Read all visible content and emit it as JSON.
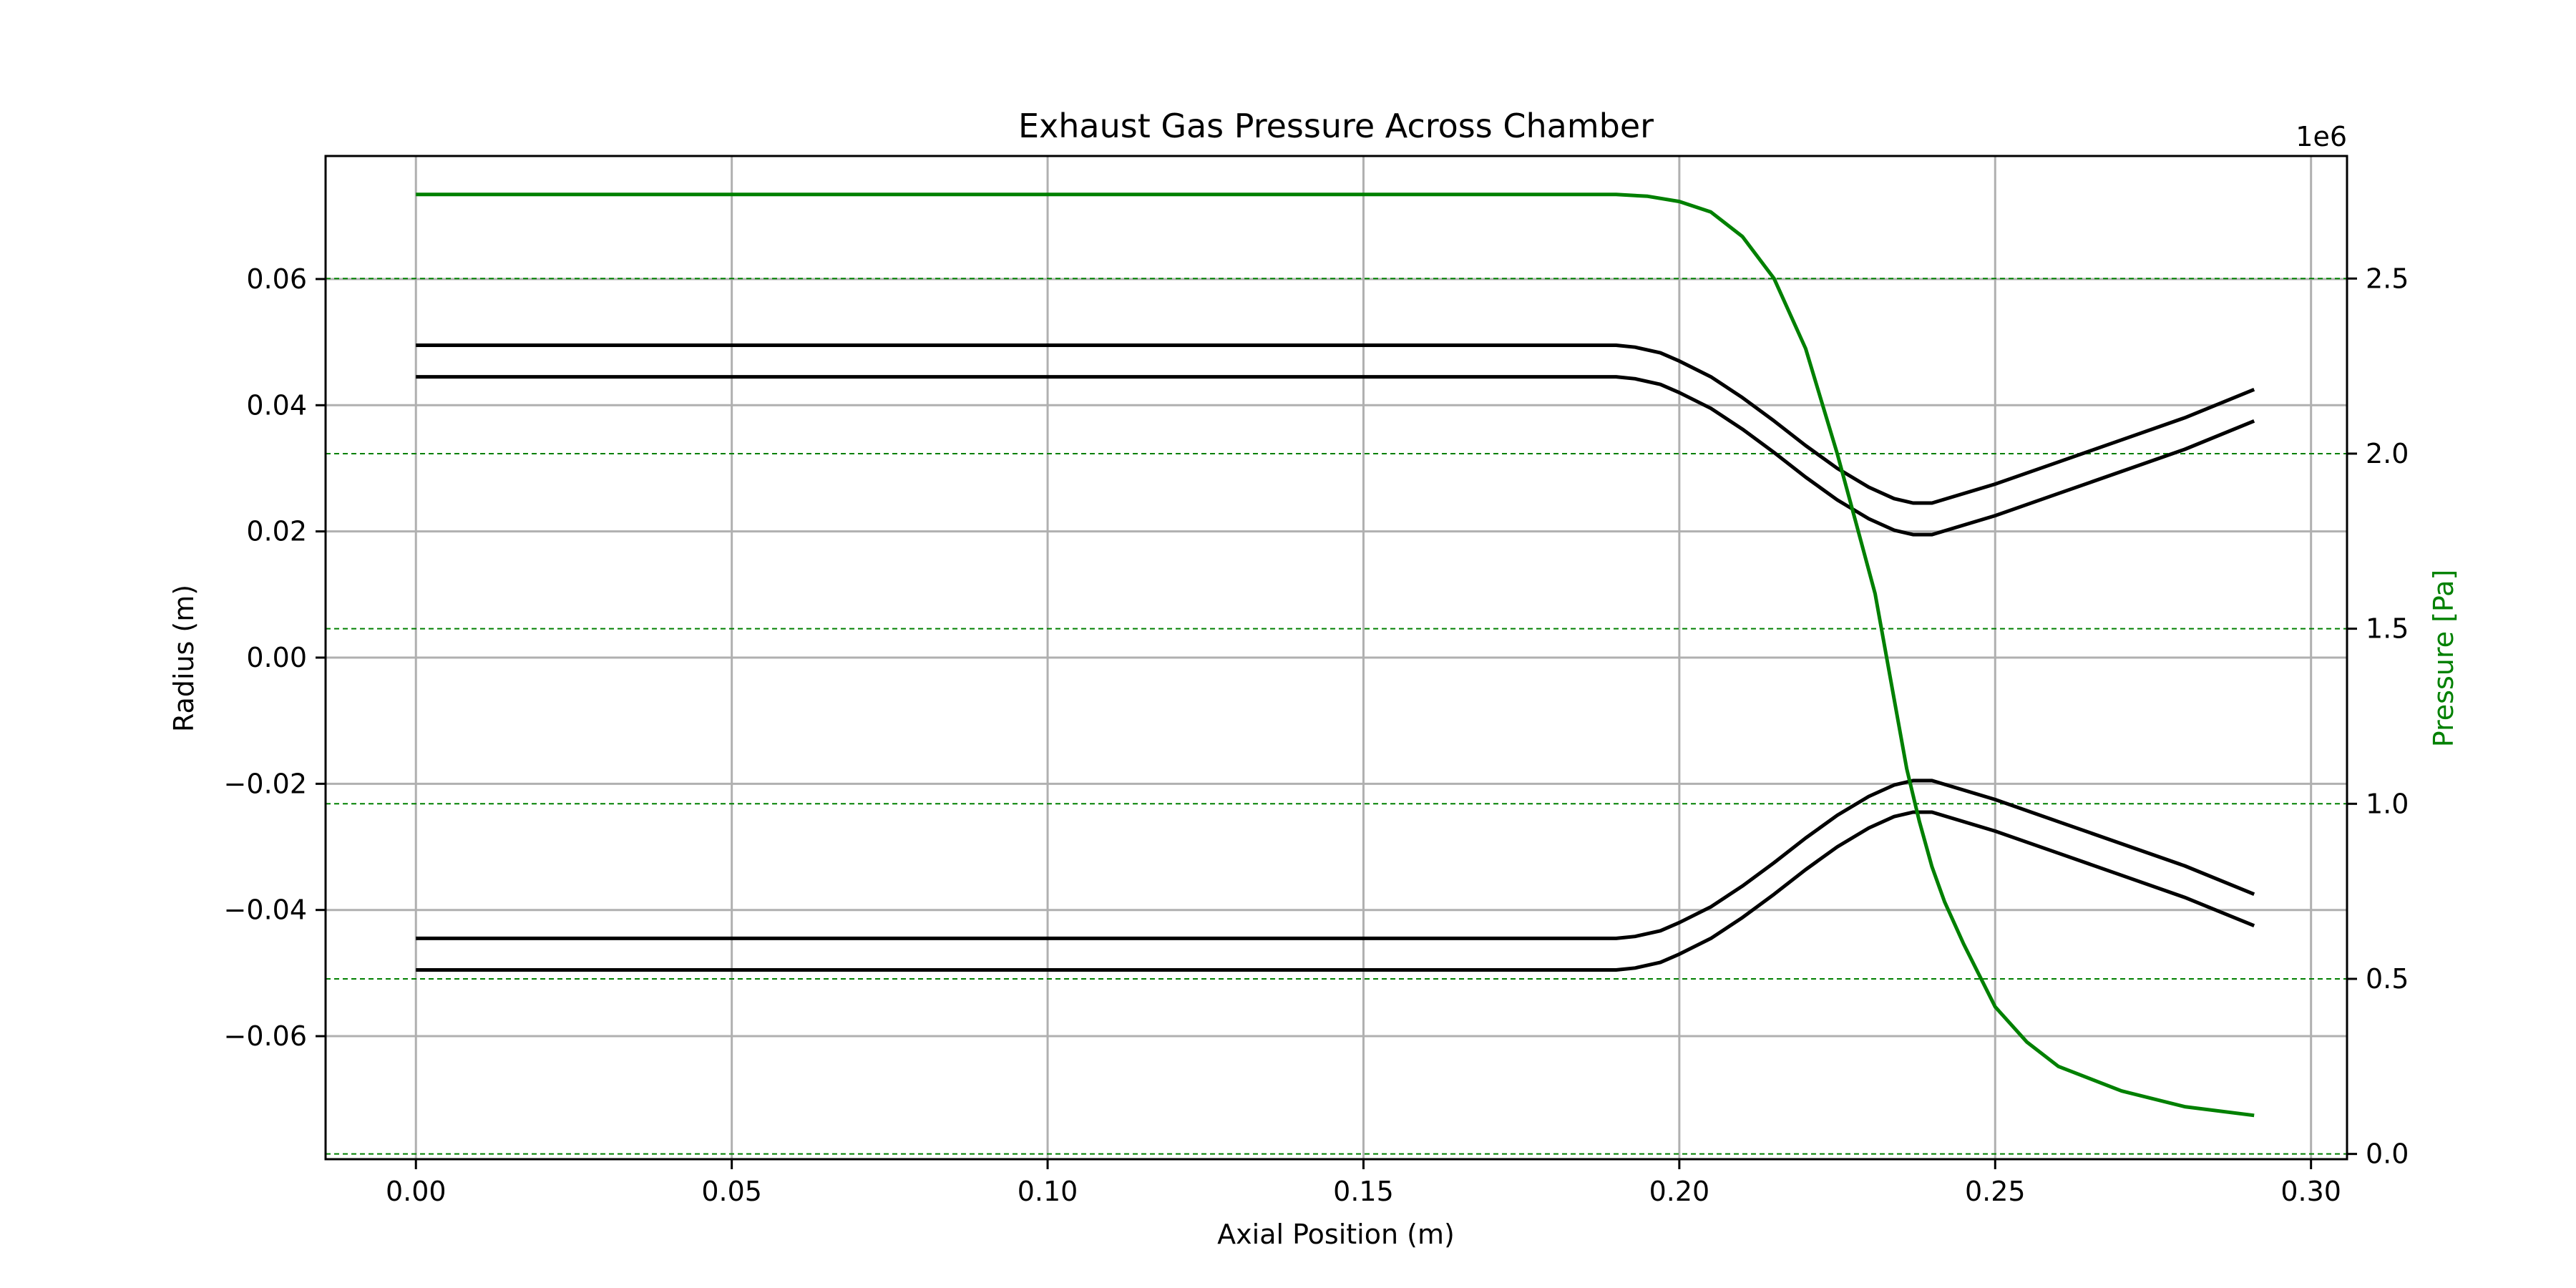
{
  "chart_data": {
    "type": "line",
    "title": "Exhaust Gas Pressure Across Chamber",
    "xlabel": "Axial Position (m)",
    "ylabel": "Radius (m)",
    "y2label": "Pressure [Pa]",
    "y2_offset_text": "1e6",
    "xlim": [
      -0.0143,
      0.3057
    ],
    "ylim": [
      -0.0795,
      0.0795
    ],
    "y2lim": [
      -0.015,
      2.85
    ],
    "y2_scale": 1000000,
    "grid": true,
    "x_ticks": [
      {
        "value": 0.0,
        "label": "0.00"
      },
      {
        "value": 0.05,
        "label": "0.05"
      },
      {
        "value": 0.1,
        "label": "0.10"
      },
      {
        "value": 0.15,
        "label": "0.15"
      },
      {
        "value": 0.2,
        "label": "0.20"
      },
      {
        "value": 0.25,
        "label": "0.25"
      },
      {
        "value": 0.3,
        "label": "0.30"
      }
    ],
    "y_ticks": [
      {
        "value": 0.06,
        "label": "0.06"
      },
      {
        "value": 0.04,
        "label": "0.04"
      },
      {
        "value": 0.02,
        "label": "0.02"
      },
      {
        "value": 0.0,
        "label": "0.00"
      },
      {
        "value": -0.02,
        "label": "−0.02"
      },
      {
        "value": -0.04,
        "label": "−0.04"
      },
      {
        "value": -0.06,
        "label": "−0.06"
      }
    ],
    "y2_ticks": [
      {
        "value": 2.5,
        "label": "2.5"
      },
      {
        "value": 2.0,
        "label": "2.0"
      },
      {
        "value": 1.5,
        "label": "1.5"
      },
      {
        "value": 1.0,
        "label": "1.0"
      },
      {
        "value": 0.5,
        "label": "0.5"
      },
      {
        "value": 0.0,
        "label": "0.0"
      }
    ],
    "colors": {
      "contour": "#000000",
      "pressure": "#008000",
      "grid": "#b0b0b0"
    },
    "contour_series": [
      {
        "x": [
          0.0,
          0.19,
          0.193,
          0.197,
          0.2,
          0.205,
          0.21,
          0.215,
          0.22,
          0.225,
          0.23,
          0.234,
          0.237,
          0.24,
          0.25,
          0.26,
          0.27,
          0.28,
          0.291
        ],
        "y": [
          0.0495,
          0.0495,
          0.0492,
          0.0483,
          0.047,
          0.0445,
          0.0412,
          0.0375,
          0.0336,
          0.03,
          0.027,
          0.0252,
          0.0245,
          0.0245,
          0.0275,
          0.031,
          0.0345,
          0.038,
          0.0425
        ]
      },
      {
        "x": [
          0.0,
          0.19,
          0.193,
          0.197,
          0.2,
          0.205,
          0.21,
          0.215,
          0.22,
          0.225,
          0.23,
          0.234,
          0.237,
          0.24,
          0.25,
          0.26,
          0.27,
          0.28,
          0.291
        ],
        "y": [
          0.0445,
          0.0445,
          0.0442,
          0.0433,
          0.042,
          0.0395,
          0.0362,
          0.0325,
          0.0286,
          0.025,
          0.022,
          0.0202,
          0.0195,
          0.0195,
          0.0225,
          0.026,
          0.0295,
          0.033,
          0.0375
        ]
      },
      {
        "x": [
          0.0,
          0.19,
          0.193,
          0.197,
          0.2,
          0.205,
          0.21,
          0.215,
          0.22,
          0.225,
          0.23,
          0.234,
          0.237,
          0.24,
          0.25,
          0.26,
          0.27,
          0.28,
          0.291
        ],
        "y": [
          -0.0445,
          -0.0445,
          -0.0442,
          -0.0433,
          -0.042,
          -0.0395,
          -0.0362,
          -0.0325,
          -0.0286,
          -0.025,
          -0.022,
          -0.0202,
          -0.0195,
          -0.0195,
          -0.0225,
          -0.026,
          -0.0295,
          -0.033,
          -0.0375
        ]
      },
      {
        "x": [
          0.0,
          0.19,
          0.193,
          0.197,
          0.2,
          0.205,
          0.21,
          0.215,
          0.22,
          0.225,
          0.23,
          0.234,
          0.237,
          0.24,
          0.25,
          0.26,
          0.27,
          0.28,
          0.291
        ],
        "y": [
          -0.0495,
          -0.0495,
          -0.0492,
          -0.0483,
          -0.047,
          -0.0445,
          -0.0412,
          -0.0375,
          -0.0336,
          -0.03,
          -0.027,
          -0.0252,
          -0.0245,
          -0.0245,
          -0.0275,
          -0.031,
          -0.0345,
          -0.038,
          -0.0425
        ]
      }
    ],
    "pressure_series": {
      "axis": "y2",
      "x": [
        0.0,
        0.19,
        0.195,
        0.2,
        0.205,
        0.21,
        0.215,
        0.22,
        0.225,
        0.228,
        0.231,
        0.234,
        0.236,
        0.238,
        0.24,
        0.242,
        0.245,
        0.25,
        0.255,
        0.26,
        0.27,
        0.28,
        0.291
      ],
      "y": [
        2.74,
        2.74,
        2.735,
        2.72,
        2.69,
        2.62,
        2.5,
        2.3,
        2.0,
        1.8,
        1.6,
        1.3,
        1.1,
        0.95,
        0.82,
        0.72,
        0.6,
        0.42,
        0.32,
        0.25,
        0.18,
        0.135,
        0.11
      ]
    }
  }
}
